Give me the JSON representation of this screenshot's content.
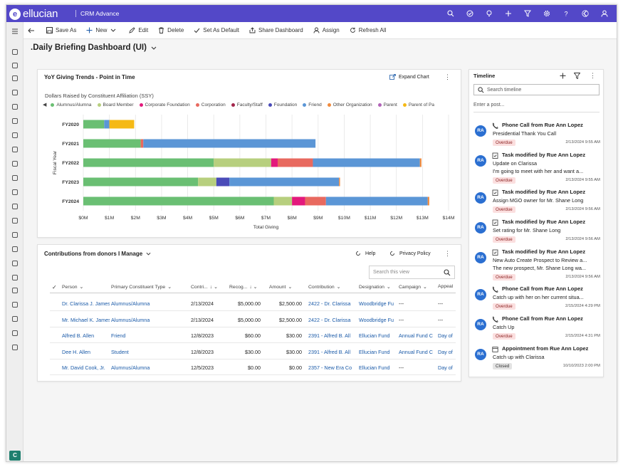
{
  "app": {
    "logo_text": "ellucian",
    "logo_mark": "e",
    "app_name": "CRM Advance"
  },
  "top_icons": [
    "search-icon",
    "check-circle-icon",
    "lightbulb-icon",
    "plus-icon",
    "filter-icon",
    "settings-icon",
    "help-icon",
    "back-icon",
    "user-icon"
  ],
  "command_bar": {
    "save_as": "Save As",
    "new": "New",
    "edit": "Edit",
    "delete": "Delete",
    "set_default": "Set As Default",
    "share": "Share Dashboard",
    "assign": "Assign",
    "refresh": "Refresh All"
  },
  "page_title": ".Daily Briefing Dashboard (UI)",
  "chart_card": {
    "title": "YoY Giving Trends - Point in Time",
    "expand": "Expand Chart",
    "subtitle": "Dollars Raised by Constituent Affiliation (SSY)"
  },
  "chart_data": {
    "type": "bar",
    "orientation": "horizontal",
    "stacked": true,
    "categories": [
      "FY2020",
      "FY2021",
      "FY2022",
      "FY2023",
      "FY2024"
    ],
    "xlabel": "Total Giving",
    "ylabel": "Fiscal Year",
    "xlim": [
      0,
      14000000
    ],
    "x_ticks": [
      "$0M",
      "$1M",
      "$2M",
      "$3M",
      "$4M",
      "$5M",
      "$6M",
      "$7M",
      "$8M",
      "$9M",
      "$10M",
      "$11M",
      "$12M",
      "$13M",
      "$14M"
    ],
    "grid": true,
    "legend_position": "top",
    "series": [
      {
        "name": "Alumnus/Alumna",
        "color": "#6abf73",
        "values": [
          800000,
          2200000,
          5000000,
          4400000,
          7300000
        ]
      },
      {
        "name": "Board Member",
        "color": "#b7cf7e",
        "values": [
          0,
          0,
          2200000,
          700000,
          700000
        ]
      },
      {
        "name": "Corporate Foundation",
        "color": "#e3197c",
        "values": [
          0,
          0,
          250000,
          0,
          500000
        ]
      },
      {
        "name": "Corporation",
        "color": "#e8695f",
        "values": [
          0,
          100000,
          1350000,
          0,
          800000
        ]
      },
      {
        "name": "Faculty/Staff",
        "color": "#a3264c",
        "values": [
          0,
          0,
          0,
          0,
          0
        ]
      },
      {
        "name": "Foundation",
        "color": "#4a4bb8",
        "values": [
          0,
          0,
          0,
          500000,
          0
        ]
      },
      {
        "name": "Friend",
        "color": "#5b96d6",
        "values": [
          200000,
          6600000,
          4100000,
          4200000,
          3900000
        ]
      },
      {
        "name": "Other Organization",
        "color": "#f08a3c",
        "values": [
          0,
          0,
          60000,
          40000,
          60000
        ]
      },
      {
        "name": "Parent",
        "color": "#b264b8",
        "values": [
          0,
          0,
          0,
          0,
          0
        ]
      },
      {
        "name": "Parent of Pa",
        "color": "#f5b915",
        "values": [
          950000,
          0,
          0,
          0,
          0
        ]
      }
    ]
  },
  "contrib_card": {
    "title": "Contributions from donors I Manage",
    "help": "Help",
    "privacy": "Privacy Policy",
    "search_placeholder": "Search this view",
    "columns": [
      "Person",
      "Primary Constituent Type",
      "Contri...",
      "Recog...",
      "Amount",
      "Contribution",
      "Designation",
      "Campaign",
      "Appeal"
    ],
    "rows": [
      {
        "person": "Dr. Clarissa J. James",
        "type": "Alumnus/Alumna",
        "date": "2/13/2024",
        "recog": "$5,000.00",
        "amount": "$2,500.00",
        "contribution": "2422 - Dr. Clarissa",
        "designation": "Woodbridge Fu",
        "campaign": "---",
        "appeal": "---"
      },
      {
        "person": "Mr. Michael K. James",
        "type": "Alumnus/Alumna",
        "date": "2/13/2024",
        "recog": "$5,000.00",
        "amount": "$2,500.00",
        "contribution": "2422 - Dr. Clarissa",
        "designation": "Woodbridge Fu",
        "campaign": "---",
        "appeal": "---"
      },
      {
        "person": "Alfred B. Allen",
        "type": "Friend",
        "date": "12/8/2023",
        "recog": "$60.00",
        "amount": "$30.00",
        "contribution": "2391 - Alfred B. All",
        "designation": "Ellucian Fund",
        "campaign": "Annual Fund C",
        "appeal": "Day of"
      },
      {
        "person": "Dee H. Allen",
        "type": "Student",
        "date": "12/8/2023",
        "recog": "$30.00",
        "amount": "$30.00",
        "contribution": "2391 - Alfred B. All",
        "designation": "Ellucian Fund",
        "campaign": "Annual Fund C",
        "appeal": "Day of"
      },
      {
        "person": "Mr. David Cook, Jr.",
        "type": "Alumnus/Alumna",
        "date": "12/5/2023",
        "recog": "$0.00",
        "amount": "$0.00",
        "contribution": "2357 - New Era Co",
        "designation": "Ellucian Fund",
        "campaign": "---",
        "appeal": "Day of"
      }
    ]
  },
  "timeline": {
    "title": "Timeline",
    "search_placeholder": "Search timeline",
    "post_placeholder": "Enter a post...",
    "items": [
      {
        "initials": "RA",
        "icon": "phone-icon",
        "title": "Phone Call from Rue Ann Lopez",
        "lines": [
          "Presidential Thank You Call"
        ],
        "badge": "Overdue",
        "time": "2/13/2024 9:55 AM"
      },
      {
        "initials": "RA",
        "icon": "task-icon",
        "title": "Task modified by Rue Ann Lopez",
        "lines": [
          "Update on Clarissa",
          "I'm going to meet with her and want a..."
        ],
        "badge": "Overdue",
        "time": "2/13/2024 9:55 AM"
      },
      {
        "initials": "RA",
        "icon": "task-icon",
        "title": "Task modified by Rue Ann Lopez",
        "lines": [
          "Assign MGO owner for Mr. Shane Long"
        ],
        "badge": "Overdue",
        "time": "2/13/2024 9:56 AM"
      },
      {
        "initials": "RA",
        "icon": "task-icon",
        "title": "Task modified by Rue Ann Lopez",
        "lines": [
          "Set rating for Mr. Shane Long"
        ],
        "badge": "Overdue",
        "time": "2/13/2024 9:56 AM"
      },
      {
        "initials": "RA",
        "icon": "task-icon",
        "title": "Task modified by Rue Ann Lopez",
        "lines": [
          "New Auto Create Prospect to Review a...",
          "The new prospect, Mr. Shane Long wa..."
        ],
        "badge": "Overdue",
        "time": "2/13/2024 9:56 AM"
      },
      {
        "initials": "RA",
        "icon": "phone-icon",
        "title": "Phone Call from Rue Ann Lopez",
        "lines": [
          "Catch up with her on her current situa..."
        ],
        "badge": "Overdue",
        "time": "2/15/2024 4:29 PM"
      },
      {
        "initials": "RA",
        "icon": "phone-icon",
        "title": "Phone Call from Rue Ann Lopez",
        "lines": [
          "Catch Up"
        ],
        "badge": "Overdue",
        "time": "2/15/2024 4:31 PM"
      },
      {
        "initials": "RA",
        "icon": "calendar-icon",
        "title": "Appointment from Rue Ann Lopez",
        "lines": [
          "Catch up with Clarissa"
        ],
        "badge": "Closed",
        "time": "10/10/2023 2:00 PM"
      }
    ]
  },
  "left_nav_icons": [
    "hamburger-icon",
    "home-icon",
    "dashboard-icon",
    "gear-icon",
    "gear-icon",
    "list-icon",
    "people-icon",
    "list-icon",
    "export-icon",
    "import-icon",
    "people-icon",
    "send-icon",
    "document-icon",
    "phone-device-icon",
    "link-icon",
    "building-icon",
    "calendar-icon",
    "mail-icon",
    "send-icon",
    "inbox-icon",
    "note-icon",
    "mobile-icon",
    "phone-icon"
  ],
  "area_badge": "C"
}
